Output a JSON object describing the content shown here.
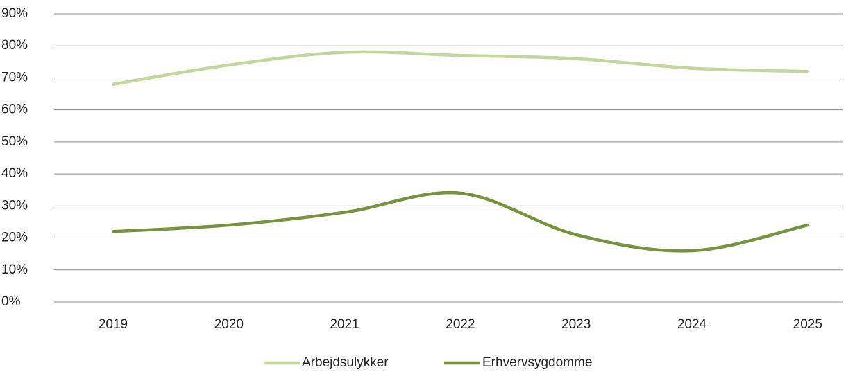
{
  "chart_data": {
    "type": "line",
    "categories": [
      "2019",
      "2020",
      "2021",
      "2022",
      "2023",
      "2024",
      "2025"
    ],
    "series": [
      {
        "name": "Arbejdsulykker",
        "color": "#c3d69b",
        "values": [
          68,
          74,
          78,
          77,
          76,
          73,
          72
        ]
      },
      {
        "name": "Erhvervsygdomme",
        "color": "#77933c",
        "values": [
          22,
          24,
          28,
          34,
          21,
          16,
          24
        ]
      }
    ],
    "ylim": [
      0,
      90
    ],
    "yticks": [
      {
        "value": 0,
        "label": "0%"
      },
      {
        "value": 10,
        "label": "10%"
      },
      {
        "value": 20,
        "label": "20%"
      },
      {
        "value": 30,
        "label": "30%"
      },
      {
        "value": 40,
        "label": "40%"
      },
      {
        "value": 50,
        "label": "50%"
      },
      {
        "value": 60,
        "label": "60%"
      },
      {
        "value": 70,
        "label": "70%"
      },
      {
        "value": 80,
        "label": "80%"
      },
      {
        "value": 90,
        "label": "90%"
      }
    ],
    "grid": true,
    "smooth": true,
    "legend": "bottom"
  }
}
